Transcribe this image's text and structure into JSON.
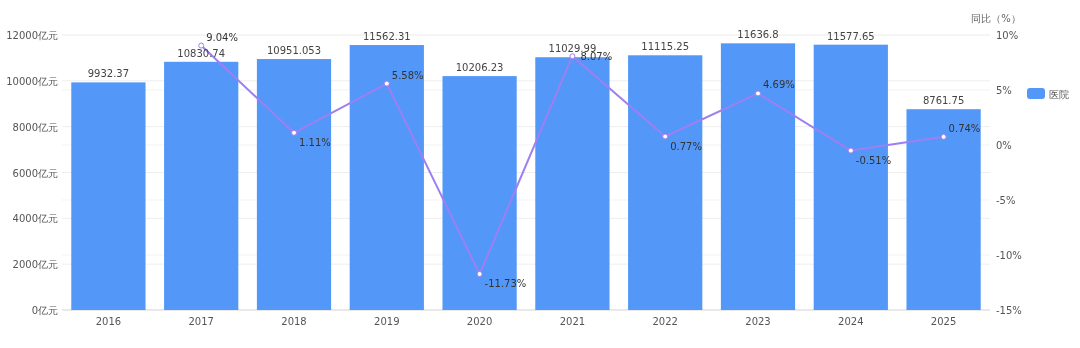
{
  "chart_data": {
    "type": "bar",
    "categories": [
      "2016",
      "2017",
      "2018",
      "2019",
      "2020",
      "2021",
      "2022",
      "2023",
      "2024",
      "2025"
    ],
    "series": [
      {
        "name": "医院",
        "type": "bar",
        "color": "#5398f8",
        "values": [
          9932.37,
          10830.74,
          10951.053,
          11562.31,
          10206.23,
          11029.99,
          11115.25,
          11636.8,
          11577.65,
          8761.75
        ],
        "value_labels": [
          "9932.37",
          "10830.74",
          "10951.053",
          "11562.31",
          "10206.23",
          "11029.99",
          "11115.25",
          "11636.8",
          "11577.65",
          "8761.75"
        ]
      },
      {
        "type": "line",
        "axis": "y2",
        "color": "#9d7ff2",
        "marker": "circle",
        "values": [
          null,
          9.04,
          1.11,
          5.58,
          -11.73,
          8.07,
          0.77,
          4.69,
          -0.51,
          0.74
        ],
        "value_labels": [
          null,
          "9.04%",
          "1.11%",
          "5.58%",
          "-11.73%",
          "8.07%",
          "0.77%",
          "4.69%",
          "-0.51%",
          "0.74%"
        ]
      }
    ],
    "y2label": "同比（%）",
    "ylim": [
      0,
      12000
    ],
    "yticks": [
      {
        "value": 0,
        "label": "0亿元"
      },
      {
        "value": 2000,
        "label": "2000亿元"
      },
      {
        "value": 4000,
        "label": "4000亿元"
      },
      {
        "value": 6000,
        "label": "6000亿元"
      },
      {
        "value": 8000,
        "label": "8000亿元"
      },
      {
        "value": 10000,
        "label": "10000亿元"
      },
      {
        "value": 12000,
        "label": "12000亿元"
      }
    ],
    "y2lim": [
      -15,
      10
    ],
    "y2ticks": [
      {
        "value": -15,
        "label": "-15%"
      },
      {
        "value": -10,
        "label": "-10%"
      },
      {
        "value": -5,
        "label": "-5%"
      },
      {
        "value": 0,
        "label": "0%"
      },
      {
        "value": 5,
        "label": "5%"
      },
      {
        "value": 10,
        "label": "10%"
      }
    ],
    "grid": "y",
    "legend": "right"
  }
}
